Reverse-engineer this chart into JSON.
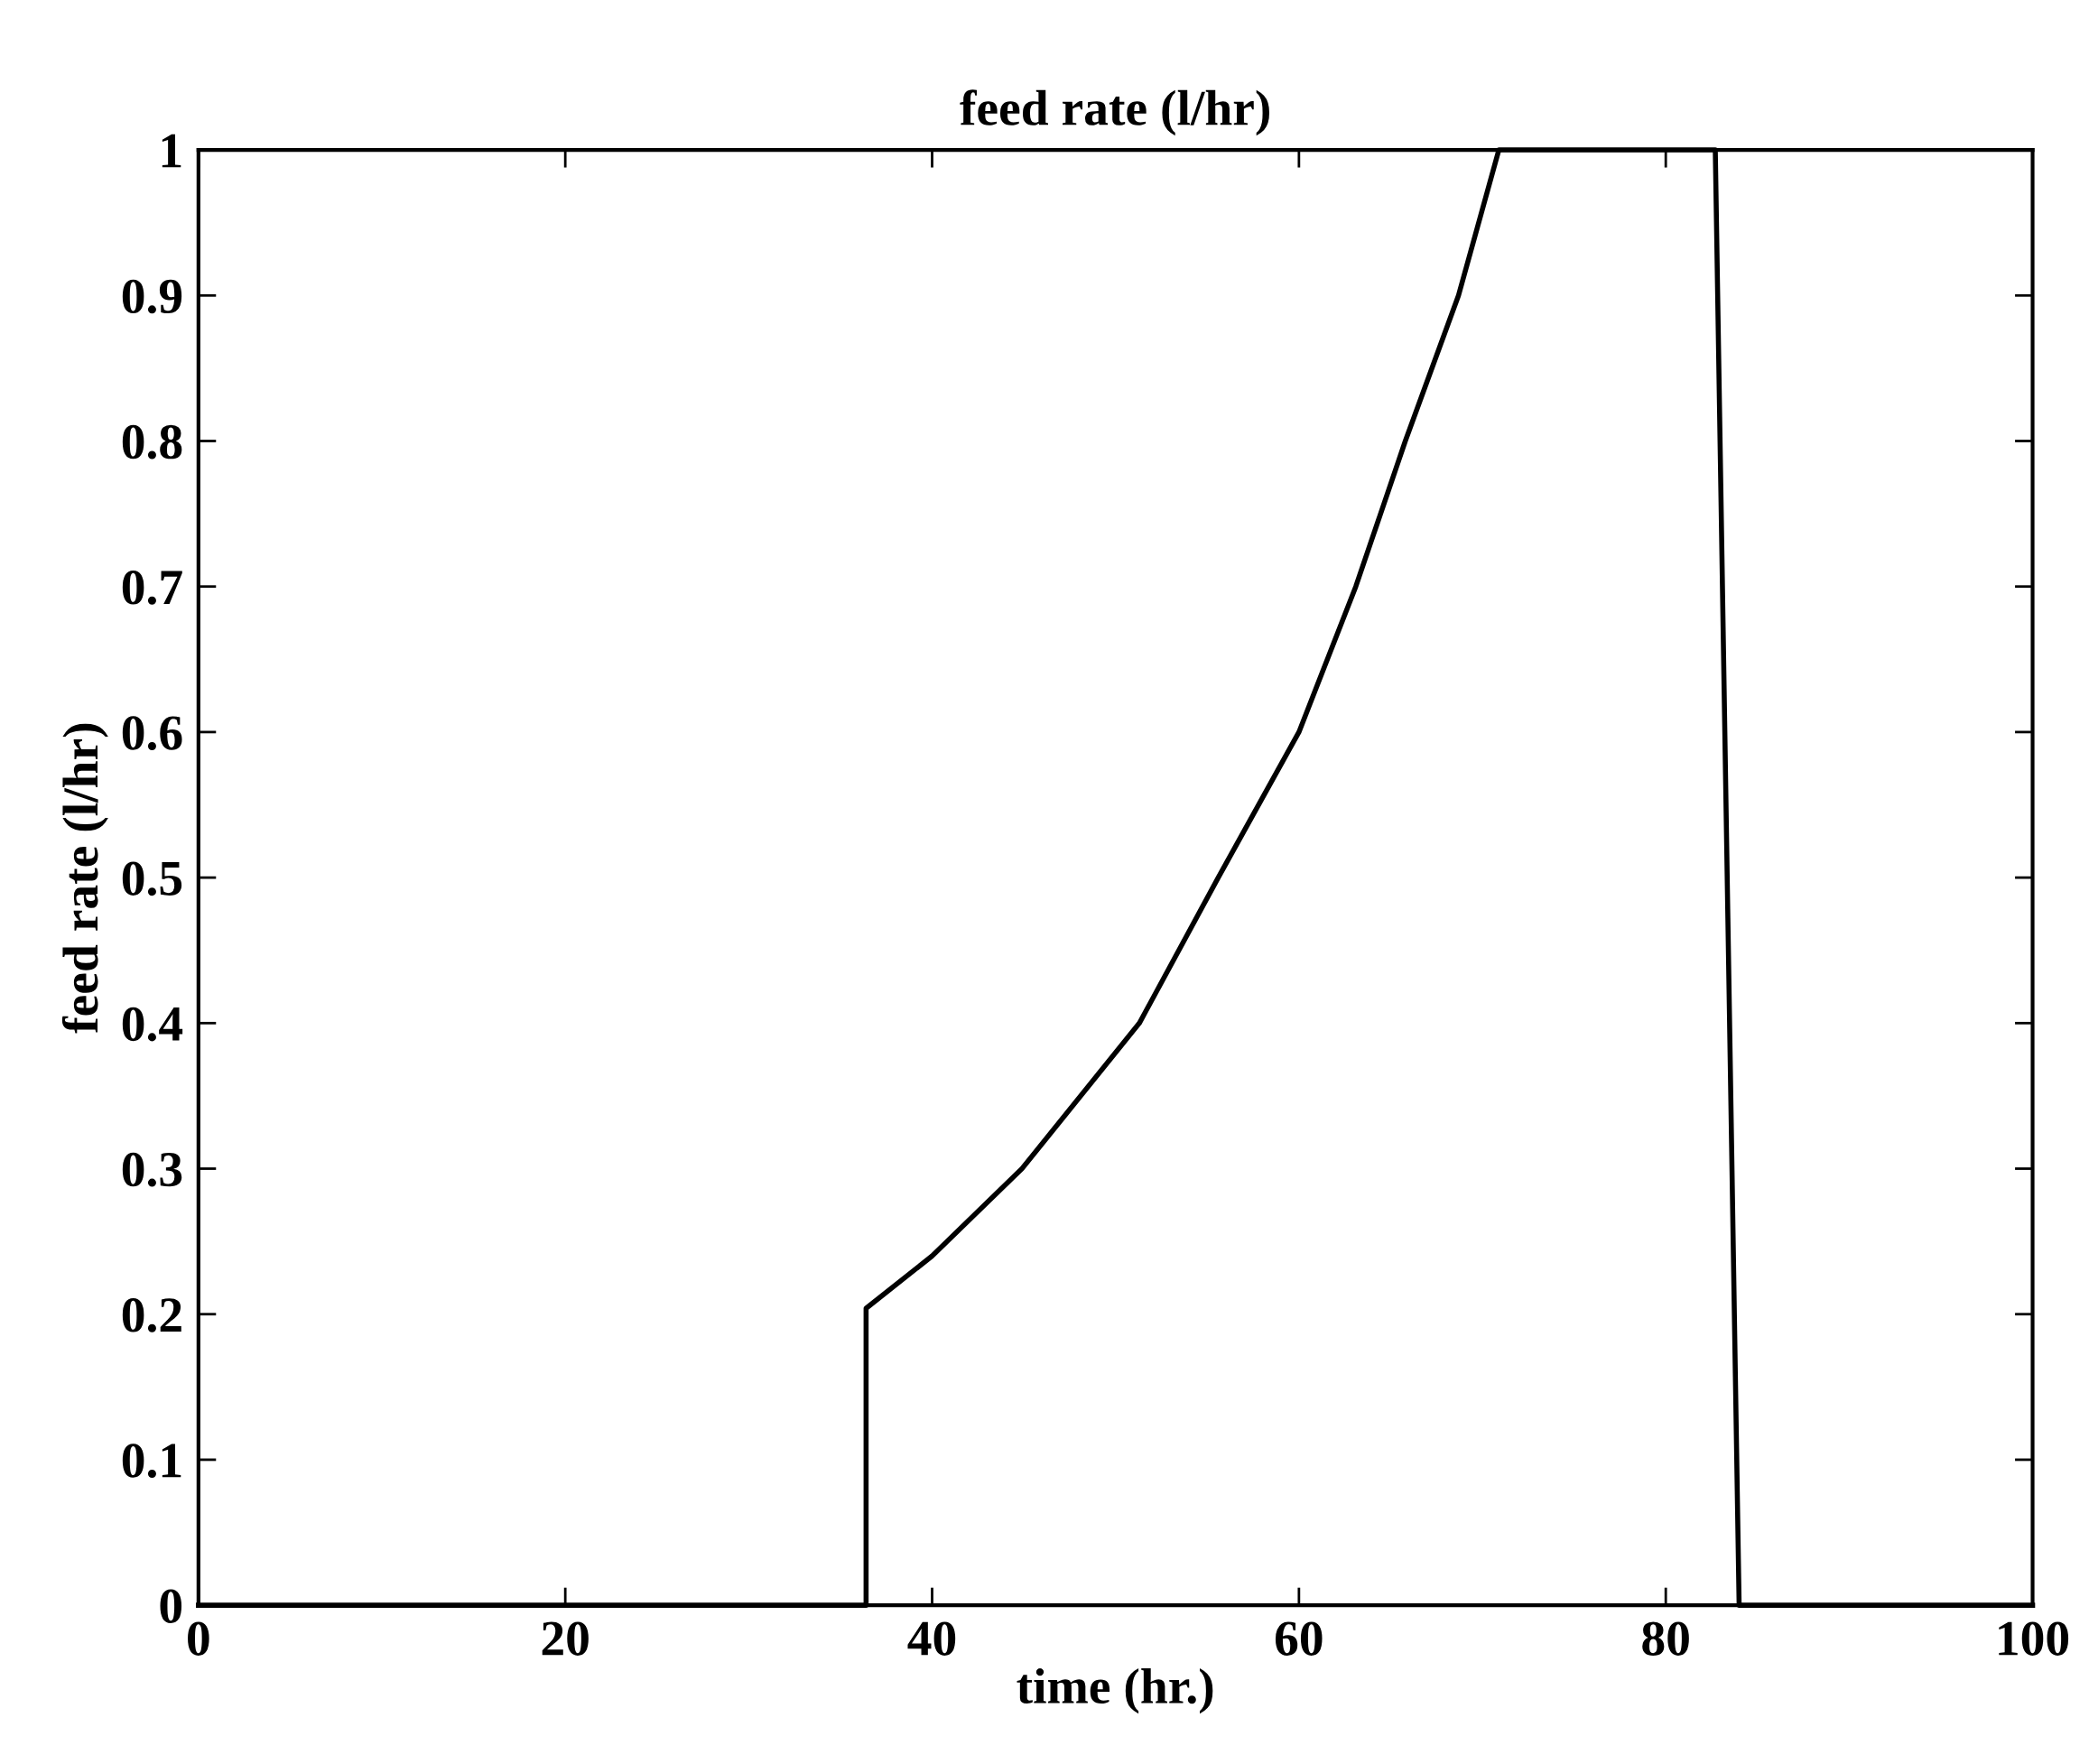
{
  "chart_data": {
    "type": "line",
    "title": "feed rate (l/hr)",
    "xlabel": "time (hr.)",
    "ylabel": "feed rate (l/hr)",
    "x": [
      0,
      36.4,
      36.4,
      40,
      44.9,
      51.3,
      55.6,
      60,
      63.1,
      65.8,
      68.7,
      70.9,
      82.7,
      84.0,
      100
    ],
    "series": [
      {
        "color": "#000000",
        "values": [
          0,
          0,
          0.204,
          0.24,
          0.3,
          0.4,
          0.5,
          0.6,
          0.7,
          0.8,
          0.9,
          1.0,
          1.0,
          0,
          0
        ]
      }
    ],
    "xlim": [
      0,
      100
    ],
    "xticks": [
      0,
      20,
      40,
      60,
      80,
      100
    ],
    "ylim": [
      0,
      1
    ],
    "yticks": [
      0,
      0.1,
      0.2,
      0.3,
      0.4,
      0.5,
      0.6,
      0.7,
      0.8,
      0.9,
      1
    ],
    "grid": false,
    "marker": "none",
    "line_style": "solid"
  }
}
